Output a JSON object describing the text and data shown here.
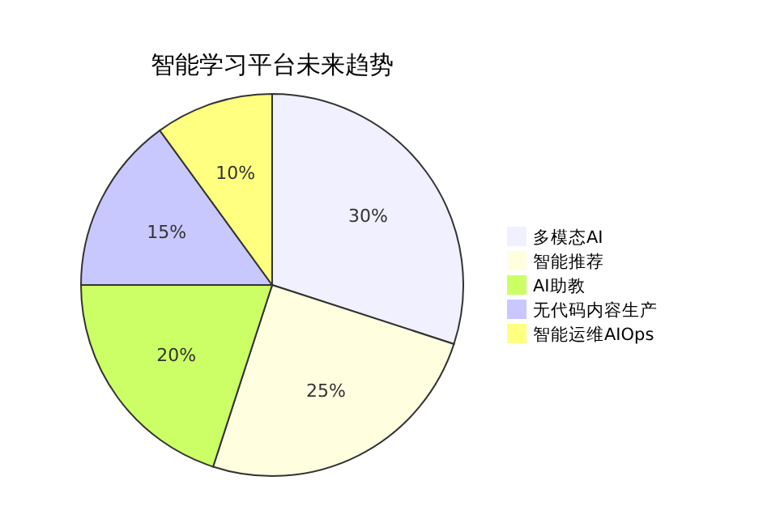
{
  "chart_data": {
    "type": "pie",
    "title": "智能学习平台未来趋势",
    "categories": [
      "多模态AI",
      "智能推荐",
      "AI助教",
      "无代码内容生产",
      "智能运维AIOps"
    ],
    "values": [
      30,
      25,
      20,
      15,
      10
    ],
    "colors": [
      "#f0f0ff",
      "#ffffe0",
      "#ccff66",
      "#c8c8ff",
      "#ffff80"
    ],
    "value_labels": [
      "30%",
      "25%",
      "20%",
      "15%",
      "10%"
    ],
    "legend": "right"
  }
}
